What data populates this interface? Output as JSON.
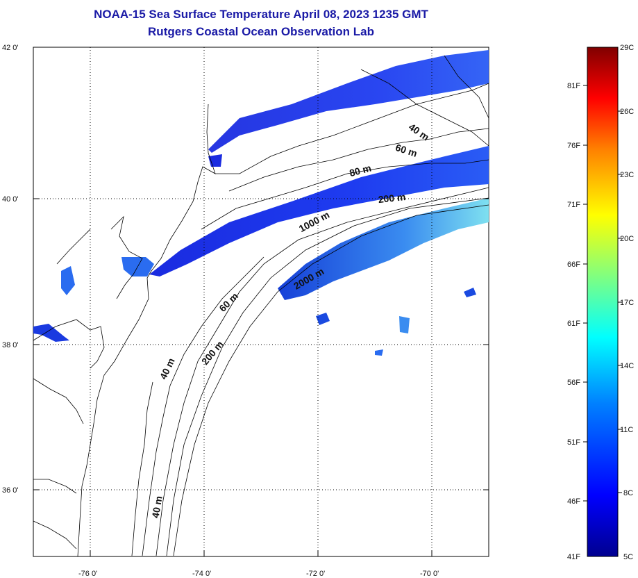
{
  "title": "NOAA-15 Sea Surface Temperature April 08, 2023 1235 GMT",
  "subtitle": "Rutgers Coastal Ocean Observation Lab",
  "map": {
    "lat_labels": [
      "42 0'",
      "40 0'",
      "38 0'",
      "36 0'"
    ],
    "lon_labels": [
      "-76 0'",
      "-74 0'",
      "-72 0'",
      "-70 0'"
    ],
    "lat_range": [
      35,
      42
    ],
    "lon_range": [
      -77,
      -69
    ],
    "contour_labels": [
      "40 m",
      "60 m",
      "80 m",
      "200 m",
      "1000 m",
      "2000 m",
      "60 m",
      "40 m",
      "200 m",
      "40 m"
    ]
  },
  "colorbar": {
    "celsius_labels": [
      "29C",
      "26C",
      "23C",
      "20C",
      "17C",
      "14C",
      "11C",
      "8C",
      "5C"
    ],
    "fahrenheit_labels": [
      "81F",
      "76F",
      "71F",
      "66F",
      "61F",
      "56F",
      "51F",
      "46F",
      "41F"
    ],
    "colors": [
      "#00008f",
      "#0000ff",
      "#0080ff",
      "#00ffff",
      "#80ff80",
      "#ffff00",
      "#ff8000",
      "#ff0000",
      "#800000"
    ]
  }
}
